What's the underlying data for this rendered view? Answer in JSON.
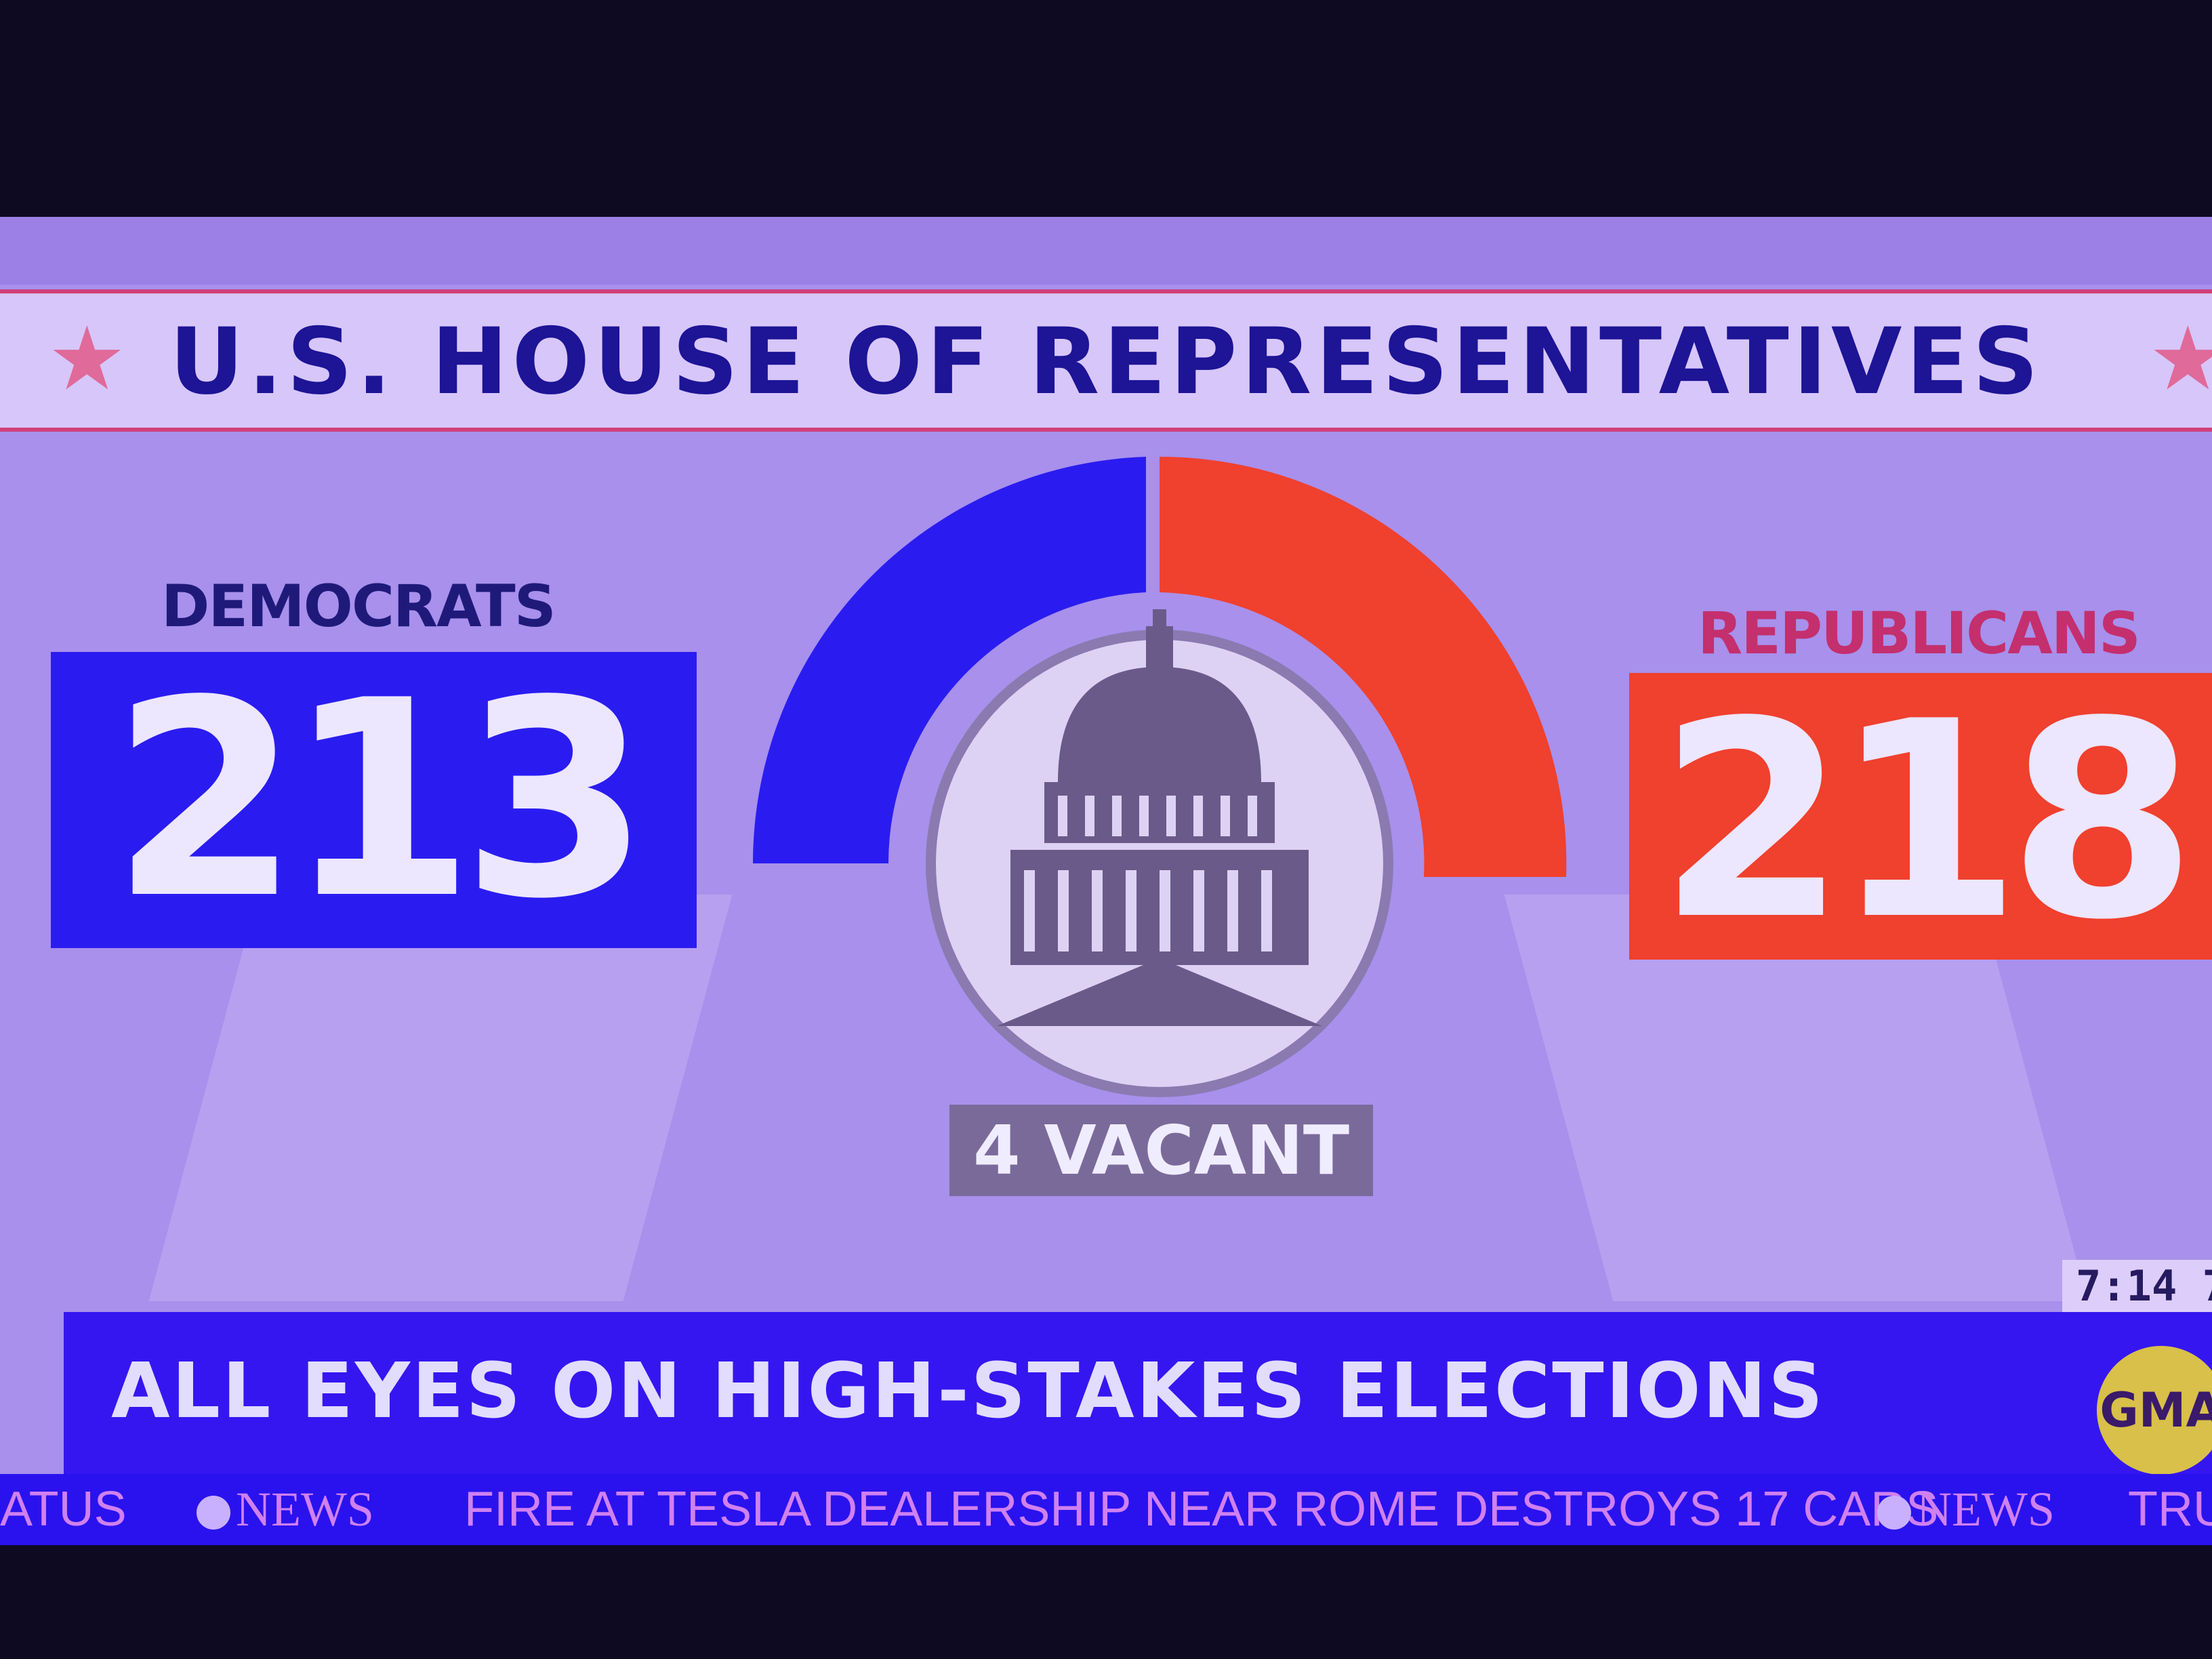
{
  "banner": {
    "title": "U.S. HOUSE OF REPRESENTATIVES"
  },
  "democrats": {
    "label": "DEMOCRATS",
    "seats": "213",
    "color": "#2a1cf0"
  },
  "republicans": {
    "label": "REPUBLICANS",
    "seats": "218",
    "color": "#f0402e"
  },
  "vacant": "4 VACANT",
  "clock": "7:14 7",
  "lower_third": {
    "headline": "ALL EYES ON HIGH-STAKES ELECTIONS",
    "logo": "GMA"
  },
  "ticker": {
    "left_fragment": "ATUS",
    "brand": "NEWS",
    "story": "FIRE AT TESLA DEALERSHIP NEAR ROME DESTROYS 17 CARS",
    "brand2": "NEWS",
    "right_fragment": "TRU"
  }
}
